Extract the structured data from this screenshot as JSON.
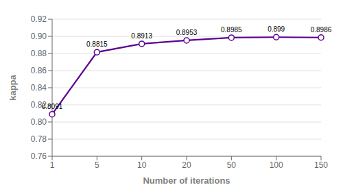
{
  "chart_data": {
    "type": "line",
    "xlabel": "Number of iterations",
    "ylabel": "kappa",
    "categories": [
      "1",
      "5",
      "10",
      "20",
      "50",
      "100",
      "150"
    ],
    "values": [
      0.8091,
      0.8815,
      0.8913,
      0.8953,
      0.8985,
      0.899,
      0.8986
    ],
    "color": "#5b0091",
    "marker": "circle",
    "data_labels": true,
    "ylim": [
      0.76,
      0.92
    ],
    "yticks": [
      0.76,
      0.78,
      {
        "value": 0.8,
        "label": "0.80"
      },
      0.82,
      0.84,
      0.86,
      0.88,
      {
        "value": 0.9,
        "label": "0.90"
      },
      0.92
    ],
    "grid": true
  }
}
